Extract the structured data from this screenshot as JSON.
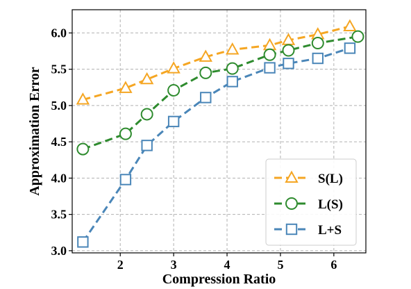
{
  "chart_data": {
    "type": "line",
    "xlabel": "Compression Ratio",
    "ylabel": "Approximation Error",
    "xlim": [
      1.1,
      6.6
    ],
    "ylim": [
      2.97,
      6.32
    ],
    "x_ticks": [
      2,
      3,
      4,
      5,
      6
    ],
    "x_tick_labels": [
      "2",
      "3",
      "4",
      "5",
      "6"
    ],
    "y_ticks": [
      3.0,
      3.5,
      4.0,
      4.5,
      5.0,
      5.5,
      6.0
    ],
    "y_tick_labels": [
      "3.0",
      "3.5",
      "4.0",
      "4.5",
      "5.0",
      "5.5",
      "6.0"
    ],
    "grid": true,
    "legend_position": "bottom-right",
    "series": [
      {
        "name": "S(L)",
        "marker": "triangle",
        "color": "#f5a623",
        "x": [
          1.3,
          2.1,
          2.5,
          3.0,
          3.6,
          4.1,
          4.8,
          5.15,
          5.7,
          6.3
        ],
        "y": [
          5.08,
          5.24,
          5.36,
          5.51,
          5.67,
          5.77,
          5.83,
          5.9,
          5.98,
          6.09
        ]
      },
      {
        "name": "L(S)",
        "marker": "circle",
        "color": "#2e8b2e",
        "x": [
          1.3,
          2.1,
          2.5,
          3.0,
          3.6,
          4.1,
          4.8,
          5.15,
          5.7,
          6.45
        ],
        "y": [
          4.4,
          4.61,
          4.88,
          5.21,
          5.45,
          5.51,
          5.7,
          5.76,
          5.86,
          5.95
        ]
      },
      {
        "name": "L+S",
        "marker": "square",
        "color": "#4a86b8",
        "x": [
          1.3,
          2.1,
          2.5,
          3.0,
          3.6,
          4.1,
          4.8,
          5.15,
          5.7,
          6.3
        ],
        "y": [
          3.12,
          3.98,
          4.45,
          4.78,
          5.11,
          5.33,
          5.52,
          5.58,
          5.65,
          5.79
        ]
      }
    ]
  }
}
